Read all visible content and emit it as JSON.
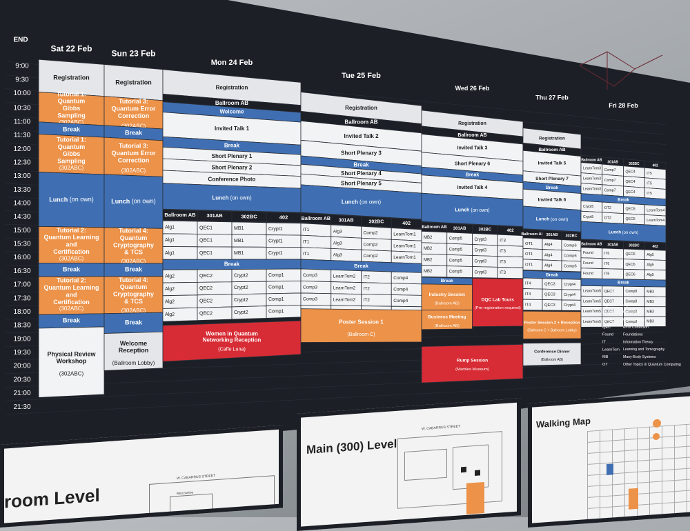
{
  "colors": {
    "board": "#1c1f26",
    "grid": "#2a2e37",
    "header_light": "#e4e6e9",
    "cell_white": "#f2f3f4",
    "blue": "#3f6fb2",
    "orange": "#ec9249",
    "red": "#d72c35",
    "dark_line": "#2b2f38",
    "text_light": "#ffffff",
    "text_dark": "#1b1b1b"
  },
  "times": [
    "9:00",
    "9:30",
    "10:00",
    "10:30",
    "11:00",
    "11:30",
    "12:00",
    "12:30",
    "13:00",
    "13:30",
    "14:00",
    "14:30",
    "15:00",
    "15:30",
    "16:00",
    "16:30",
    "17:00",
    "17:30",
    "18:00",
    "18:30",
    "19:00",
    "19:30",
    "20:00",
    "20:30",
    "21:00",
    "21:30"
  ],
  "end_label": "END",
  "days": {
    "sat": "Sat 22 Feb",
    "sun": "Sun 23 Feb",
    "mon": "Mon 24 Feb",
    "tue": "Tue 25 Feb",
    "wed": "Wed 26 Feb",
    "thu": "Thu 27 Feb",
    "fri": "Fri 28 Feb"
  },
  "sat": {
    "registration": "Registration",
    "tutorial1a": "Tutorial 1: Quantum Gibbs Sampling",
    "tutorial1a_room": "(302ABC)",
    "break1": "Break",
    "tutorial1b": "Tutorial 1: Quantum Gibbs Sampling",
    "tutorial1b_room": "(302ABC)",
    "lunch": "Lunch",
    "lunch_note": "(on own)",
    "tutorial2a": "Tutorial 2: Quantum Learning and Certification",
    "tutorial2a_room": "(302ABC)",
    "break2": "Break",
    "tutorial2b": "Tutorial 2: Quantum Learning and Certification",
    "tutorial2b_room": "(302ABC)",
    "break3": "Break",
    "workshop": "Physical Review Workshop",
    "workshop_room": "(302ABC)"
  },
  "sun": {
    "registration": "Registration",
    "tutorial3a": "Tutorial 3: Quantum Error Correction",
    "tutorial3a_room": "(302ABC)",
    "break1": "Break",
    "tutorial3b": "Tutorial 3: Quantum Error Correction",
    "tutorial3b_room": "(302ABC)",
    "lunch": "Lunch",
    "lunch_note": "(on own)",
    "tutorial4a": "Tutorial 4: Quantum Cryptography & TCS",
    "tutorial4a_room": "(302ABC)",
    "break2": "Break",
    "tutorial4b": "Tutorial 4: Quantum Cryptography & TCS",
    "tutorial4b_room": "(302ABC)",
    "break3": "Break",
    "reception": "Welcome Reception",
    "reception_room": "(Ballroom Lobby)"
  },
  "mon": {
    "registration": "Registration",
    "ballroom": "Ballroom AB",
    "welcome": "Welcome",
    "invited": "Invited Talk 1",
    "break1": "Break",
    "plenary1": "Short Plenary 1",
    "plenary2": "Short Plenary 2",
    "photo": "Conference Photo",
    "lunch": "Lunch",
    "lunch_note": "(on own)",
    "rooms": [
      "Ballroom AB",
      "301AB",
      "302BC",
      "402"
    ],
    "rows_a": [
      [
        "Alg1",
        "QEC1",
        "MB1",
        "Crypt1"
      ],
      [
        "Alg1",
        "QEC1",
        "MB1",
        "Crypt1"
      ],
      [
        "Alg1",
        "QEC1",
        "MB1",
        "Crypt1"
      ]
    ],
    "break2": "Break",
    "rows_b": [
      [
        "Alg2",
        "QEC2",
        "Crypt2",
        "Comp1"
      ],
      [
        "Alg2",
        "QEC2",
        "Crypt2",
        "Comp1"
      ],
      [
        "Alg2",
        "QEC2",
        "Crypt2",
        "Comp1"
      ],
      [
        "Alg2",
        "QEC2",
        "Crypt2",
        "Comp1"
      ]
    ],
    "women": "Women in Quantum Networking Reception",
    "women_room": "(Caffe Luna)"
  },
  "tue": {
    "registration": "Registration",
    "ballroom": "Ballroom AB",
    "invited": "Invited Talk 2",
    "plenary3": "Short Plenary 3",
    "break1": "Break",
    "plenary4": "Short Plenary 4",
    "plenary5": "Short Plenary 5",
    "lunch": "Lunch",
    "lunch_note": "(on own)",
    "rooms": [
      "Ballroom AB",
      "301AB",
      "302BC",
      "402"
    ],
    "rows_a": [
      [
        "IT1",
        "Alg3",
        "Comp2",
        "LearnTom1"
      ],
      [
        "IT1",
        "Alg3",
        "Comp2",
        "LearnTom1"
      ],
      [
        "IT1",
        "Alg3",
        "Comp2",
        "LearnTom1"
      ]
    ],
    "break2": "Break",
    "rows_b": [
      [
        "Comp3",
        "LearnTom2",
        "IT2",
        "Comp4"
      ],
      [
        "Comp3",
        "LearnTom2",
        "IT2",
        "Comp4"
      ],
      [
        "Comp3",
        "LearnTom2",
        "IT2",
        "Comp4"
      ],
      [
        "Comp3",
        "LearnTom2",
        "IT2",
        "Comp4"
      ]
    ],
    "poster": "Poster Session 1",
    "poster_room": "(Ballroom C)"
  },
  "wed": {
    "registration": "Registration",
    "ballroom": "Ballroom AB",
    "invited3": "Invited Talk 3",
    "plenary6": "Short Plenary 6",
    "break1": "Break",
    "invited4": "Invited Talk 4",
    "lunch": "Lunch",
    "lunch_note": "(on own)",
    "rooms": [
      "Ballroom AB",
      "301AB",
      "302BC",
      "402"
    ],
    "rows_a": [
      [
        "MB2",
        "Comp5",
        "Crypt3",
        "IT3"
      ],
      [
        "MB2",
        "Comp5",
        "Crypt3",
        "IT3"
      ],
      [
        "MB2",
        "Comp5",
        "Crypt3",
        "IT3"
      ],
      [
        "MB2",
        "Comp5",
        "Crypt3",
        "IT3"
      ]
    ],
    "break2": "Break",
    "industry": "Industry Session",
    "industry_room": "(Ballroom AB)",
    "business": "Business Meeting",
    "business_room": "(Ballroom AB)",
    "dqc": "DQC Lab Tours",
    "dqc_note": "(Pre-registration required)",
    "rump": "Rump Session",
    "rump_room": "(Marbles Museum)"
  },
  "thu": {
    "registration": "Registration",
    "ballroom": "Ballroom AB",
    "invited5": "Invited Talk 5",
    "plenary7": "Short Plenary 7",
    "break1": "Break",
    "invited6": "Invited Talk 6",
    "lunch": "Lunch",
    "lunch_note": "(on own)",
    "rooms": [
      "Ballroom AB",
      "301AB",
      "302BC",
      "402"
    ],
    "rows_a": [
      [
        "OT1",
        "Alg4",
        "Comp6"
      ],
      [
        "OT1",
        "Alg4",
        "Comp6"
      ],
      [
        "OT1",
        "Alg4",
        "Comp6"
      ]
    ],
    "break2": "Break",
    "rows_b": [
      [
        "IT4",
        "QEC3",
        "Crypt4"
      ],
      [
        "IT4",
        "QEC3",
        "Crypt4"
      ],
      [
        "IT4",
        "QEC3",
        "Crypt4"
      ]
    ],
    "poster": "Poster Session 2 + Reception",
    "poster_room": "(Ballroom C + Ballroom Lobby)",
    "dinner": "Conference Dinner",
    "dinner_room": "(Ballroom AB)"
  },
  "fri": {
    "rooms": [
      "Ballroom AB",
      "301AB",
      "302BC",
      "402"
    ],
    "rows_a": [
      [
        "LearnTom3",
        "Comp7",
        "QEC4",
        "IT5"
      ],
      [
        "LearnTom3",
        "Comp7",
        "QEC4",
        "IT5"
      ],
      [
        "LearnTom3",
        "Comp7",
        "QEC4",
        "IT5"
      ]
    ],
    "break1": "Break",
    "rows_b": [
      [
        "Crypt5",
        "OT2",
        "QEC5",
        "LearnTom4"
      ],
      [
        "Crypt5",
        "OT2",
        "QEC5",
        "LearnTom4"
      ]
    ],
    "lunch": "Lunch",
    "lunch_note": "(on own)",
    "rows_c": [
      [
        "Found",
        "IT6",
        "QEC6",
        "Alg5"
      ],
      [
        "Found",
        "IT6",
        "QEC6",
        "Alg5"
      ],
      [
        "Found",
        "IT6",
        "QEC6",
        "Alg5"
      ]
    ],
    "break2": "Break",
    "rows_d": [
      [
        "LearnTom5",
        "QEC7",
        "Comp8",
        "MB3"
      ],
      [
        "LearnTom5",
        "QEC7",
        "Comp8",
        "MB3"
      ],
      [
        "LearnTom5",
        "QEC7",
        "Comp8",
        "MB3"
      ],
      [
        "LearnTom5",
        "QEC7",
        "Comp8",
        "MB3"
      ]
    ]
  },
  "legend": [
    [
      "Alg",
      "Algorithms"
    ],
    [
      "Comp",
      "Complexity"
    ],
    [
      "Crypt",
      "Cryptography"
    ],
    [
      "QEC",
      "Error Correction"
    ],
    [
      "Found",
      "Foundations"
    ],
    [
      "IT",
      "Information Theory"
    ],
    [
      "LearnTom",
      "Learning and Tomography"
    ],
    [
      "MB",
      "Many-Body Systems"
    ],
    [
      "OT",
      "Other Topics in Quantum Computing"
    ]
  ],
  "maps": {
    "room_level": "room Level",
    "main_level": "Main (300) Level",
    "walking": "Walking Map",
    "street1": "W. CABARRUS STREET",
    "street2": "W. CABARRUS STREET",
    "mezzanine": "Mezzanine"
  }
}
